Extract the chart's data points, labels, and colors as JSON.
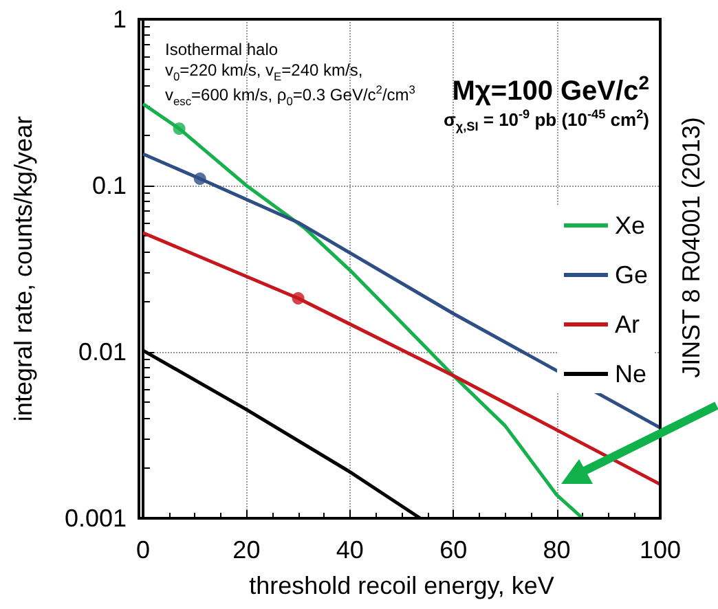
{
  "chart_data": {
    "type": "line",
    "xlabel": "threshold recoil energy, keV",
    "ylabel": "integral rate, counts/kg/year",
    "xlim": [
      0,
      100
    ],
    "xticks": [
      0,
      20,
      40,
      60,
      80,
      100
    ],
    "ylim": [
      0.001,
      1
    ],
    "yticks": [
      0.001,
      0.01,
      0.1,
      1
    ],
    "log": "y",
    "grid": true,
    "legend": "right",
    "line_style": "solid",
    "marker": "none",
    "series": [
      {
        "name": "Xe",
        "color": "#16b04c",
        "x": [
          0,
          7,
          20,
          31.4,
          40,
          50,
          60,
          70,
          80,
          85
        ],
        "values": [
          0.31,
          0.22,
          0.1,
          0.055,
          0.031,
          0.015,
          0.0072,
          0.0036,
          0.00138,
          0.001
        ]
      },
      {
        "name": "Ge",
        "color": "#2d4f86",
        "x": [
          0,
          11,
          30,
          60,
          100
        ],
        "values": [
          0.155,
          0.11,
          0.06,
          0.017,
          0.0035
        ]
      },
      {
        "name": "Ar",
        "color": "#c8161d",
        "x": [
          0,
          30,
          60,
          100
        ],
        "values": [
          0.052,
          0.021,
          0.0072,
          0.0016
        ]
      },
      {
        "name": "Ne",
        "color": "#000000",
        "x": [
          0,
          20,
          40,
          53.6
        ],
        "values": [
          0.0102,
          0.0045,
          0.0019,
          0.001
        ]
      },
      {
        "type": "scatter",
        "marker": "circle",
        "color": "#16b04c",
        "x": [
          7
        ],
        "values": [
          0.22
        ]
      },
      {
        "type": "scatter",
        "marker": "circle",
        "color": "#2d4f86",
        "x": [
          11
        ],
        "values": [
          0.11
        ]
      },
      {
        "type": "scatter",
        "marker": "circle",
        "color": "#c8161d",
        "x": [
          30
        ],
        "values": [
          0.021
        ]
      }
    ],
    "annotations": [
      "Isothermal halo",
      "v$_{0}$=220 km/s, v$_{E}$=240 km/s,",
      "v$_{esc}$=600 km/s, ρ$_{0}$=0.3 GeV/c$^{2}$/cm$^{3}$",
      "Mχ=100 GeV/c$^{2}$",
      "σ$_{χ,SI}$ = 10$^{-9}$ pb (10$^{-45}$ cm$^{2}$)",
      "JINST 8 R04001 (2013)"
    ]
  }
}
